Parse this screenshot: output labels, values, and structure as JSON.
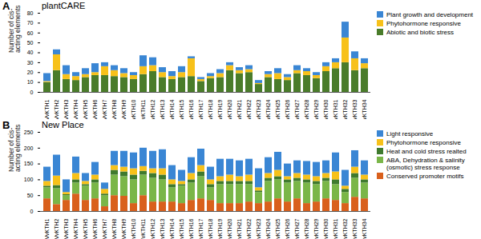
{
  "chart_data": [
    {
      "type": "bar",
      "stacked": true,
      "panel": "A",
      "title": "plantCARE",
      "y_label": "Number of cis-acting elements",
      "categories": [
        "VvKTH1",
        "VvKTH2",
        "VvKTH3",
        "VvKTH4",
        "VvKTH5",
        "VvKTH6",
        "VvKTH7",
        "VvKTH8",
        "VvKTH9",
        "VvKTH10",
        "VvKTH11",
        "VvKTH12",
        "VvKTH13",
        "VvKTH14",
        "VvKTH15",
        "VvKTH16",
        "VvKTH17",
        "VvKTH18",
        "VvKTH19",
        "VvKTH20",
        "VvKTH21",
        "VvKTH22",
        "VvKTH23",
        "VvKTH24",
        "VvKTH25",
        "VvKTH26",
        "VvKTH27",
        "VvKTH28",
        "VvKTH29",
        "VvKTH30",
        "VvKTH31",
        "VvKTH32",
        "VvKTH33",
        "VvKTH34"
      ],
      "series": [
        {
          "name": "Abiotic and biotic stress",
          "color": "#4a7c2a",
          "values": [
            10,
            22,
            13,
            12,
            15,
            17,
            17,
            16,
            15,
            13,
            18,
            21,
            15,
            13,
            15,
            16,
            11,
            14,
            15,
            22,
            19,
            20,
            8,
            15,
            13,
            12,
            19,
            17,
            14,
            21,
            24,
            30,
            22,
            24
          ]
        },
        {
          "name": "Phytohormone responsive",
          "color": "#f7c11a",
          "values": [
            1,
            16,
            5,
            4,
            3,
            3,
            9,
            6,
            4,
            4,
            8,
            6,
            5,
            3,
            5,
            18,
            2,
            2,
            4,
            5,
            3,
            3,
            1,
            3,
            6,
            3,
            3,
            4,
            3,
            5,
            6,
            25,
            12,
            5
          ]
        },
        {
          "name": "Plant growth and development",
          "color": "#3a86d4",
          "values": [
            8,
            5,
            9,
            4,
            6,
            9,
            4,
            5,
            5,
            3,
            11,
            8,
            5,
            5,
            6,
            2,
            2,
            3,
            4,
            3,
            3,
            4,
            3,
            3,
            5,
            3,
            5,
            3,
            3,
            4,
            4,
            16,
            7,
            5
          ]
        }
      ],
      "ylim": [
        0,
        80
      ],
      "yticks": [
        0,
        10,
        20,
        30,
        40,
        50,
        60,
        70,
        80
      ]
    },
    {
      "type": "bar",
      "stacked": true,
      "panel": "B",
      "title": "New Place",
      "y_label": "Number of cis-acting elements",
      "categories": [
        "VvKTH1",
        "VvKTH2",
        "VvKTH3",
        "VvKTH4",
        "VvKTH5",
        "VvKTH6",
        "VvKTH7",
        "VvKTH8",
        "VvKTH9",
        "VvKTH10",
        "VvKTH11",
        "VvKTH12",
        "VvKTH13",
        "VvKTH14",
        "VvKTH15",
        "VvKTH16",
        "VvKTH17",
        "VvKTH18",
        "VvKTH19",
        "VvKTH20",
        "VvKTH21",
        "VvKTH22",
        "VvKTH23",
        "VvKTH24",
        "VvKTH25",
        "VvKTH26",
        "VvKTH27",
        "VvKTH28",
        "VvKTH29",
        "VvKTH30",
        "VvKTH31",
        "VvKTH32",
        "VvKTH33",
        "VvKTH34"
      ],
      "series": [
        {
          "name": "Conserved promoter motifs",
          "color": "#d9601c",
          "values": [
            40,
            22,
            35,
            55,
            35,
            40,
            15,
            50,
            48,
            25,
            50,
            30,
            30,
            30,
            25,
            35,
            40,
            35,
            25,
            25,
            25,
            30,
            25,
            30,
            40,
            30,
            40,
            25,
            30,
            40,
            35,
            25,
            45,
            40
          ]
        },
        {
          "name": "ABA, Dehydration & salinity (osmotic) stress response",
          "color": "#7ab648",
          "values": [
            35,
            50,
            15,
            35,
            45,
            50,
            35,
            65,
            62,
            75,
            65,
            75,
            70,
            45,
            55,
            55,
            70,
            40,
            60,
            60,
            60,
            55,
            35,
            65,
            60,
            60,
            55,
            65,
            55,
            55,
            50,
            35,
            60,
            50
          ]
        },
        {
          "name": "Heat and cold stress realted",
          "color": "#3f7a2e",
          "values": [
            5,
            10,
            3,
            10,
            5,
            10,
            5,
            15,
            15,
            15,
            12,
            15,
            15,
            10,
            5,
            10,
            15,
            10,
            10,
            10,
            10,
            10,
            5,
            10,
            10,
            10,
            10,
            10,
            10,
            10,
            15,
            10,
            15,
            10
          ]
        },
        {
          "name": "Phytohormone responsive",
          "color": "#f7c11a",
          "values": [
            15,
            30,
            7,
            20,
            10,
            15,
            15,
            15,
            15,
            20,
            15,
            15,
            20,
            15,
            10,
            20,
            20,
            15,
            15,
            20,
            15,
            20,
            10,
            15,
            20,
            10,
            15,
            15,
            15,
            15,
            25,
            10,
            20,
            15
          ]
        },
        {
          "name": "Light responsive",
          "color": "#3a86d4",
          "values": [
            45,
            66,
            40,
            52,
            25,
            40,
            20,
            45,
            50,
            50,
            58,
            55,
            60,
            45,
            35,
            50,
            52,
            40,
            55,
            50,
            50,
            50,
            60,
            50,
            57,
            40,
            40,
            43,
            45,
            40,
            60,
            50,
            52,
            45
          ]
        }
      ],
      "ylim": [
        0,
        250
      ],
      "yticks": [
        0,
        50,
        100,
        150,
        200,
        250
      ]
    }
  ]
}
